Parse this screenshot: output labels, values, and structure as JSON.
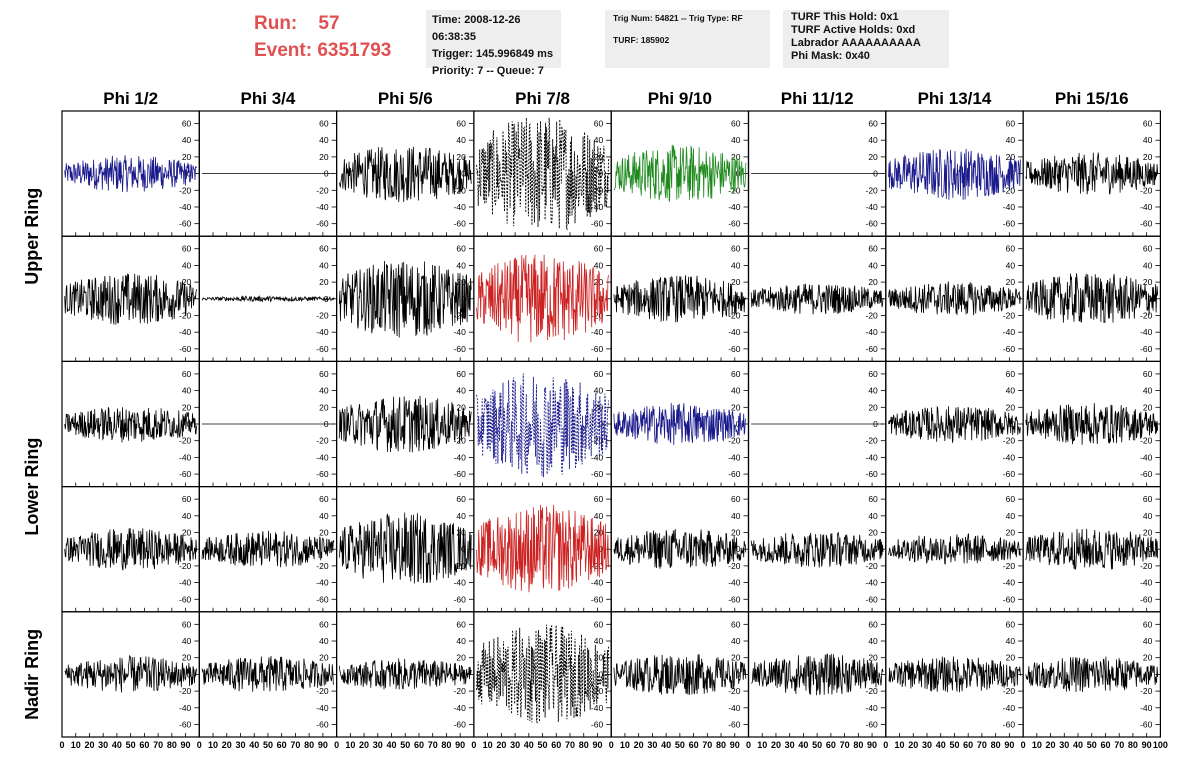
{
  "header": {
    "run_label": "Run:",
    "run_value": "57",
    "event_label": "Event:",
    "event_value": "6351793",
    "time_line": "Time: 2008-12-26 06:38:35",
    "trigger_line": "Trigger: 145.996849 ms",
    "priority_line": "Priority: 7 -- Queue: 7",
    "trig_line": "Trig Num: 54821 -- Trig Type: RF",
    "turf_line": "TURF: 185902",
    "turf_hold": "TURF This Hold: 0x1",
    "turf_active": "TURF Active Holds: 0xd",
    "labrador": "Labrador AAAAAAAAAA",
    "phi_mask": "Phi Mask: 0x40"
  },
  "chart_data": {
    "type": "line",
    "columns": [
      "Phi 1/2",
      "Phi 3/4",
      "Phi 5/6",
      "Phi 7/8",
      "Phi 9/10",
      "Phi 11/12",
      "Phi 13/14",
      "Phi 15/16"
    ],
    "row_labels": [
      "Upper Ring",
      "Lower Ring",
      "Nadir Ring"
    ],
    "xlim": [
      0,
      100
    ],
    "ylim": [
      -75,
      75
    ],
    "x_ticks": [
      0,
      10,
      20,
      30,
      40,
      50,
      60,
      70,
      80,
      90,
      100
    ],
    "y_ticks": [
      -60,
      -40,
      -20,
      0,
      20,
      40,
      60
    ],
    "colors": {
      "black": "#000000",
      "blue": "#1a1a8c",
      "green": "#1e8a1e",
      "red": "#cc2222"
    },
    "panels": [
      [
        {
          "amp": 14,
          "color": "blue",
          "dashed": false,
          "flat": false
        },
        {
          "amp": 0,
          "color": "black",
          "dashed": false,
          "flat": true
        },
        {
          "amp": 22,
          "color": "black",
          "dashed": false,
          "flat": false
        },
        {
          "amp": 45,
          "color": "black",
          "dashed": true,
          "flat": false
        },
        {
          "amp": 22,
          "color": "green",
          "dashed": false,
          "flat": false
        },
        {
          "amp": 0,
          "color": "black",
          "dashed": false,
          "flat": true
        },
        {
          "amp": 20,
          "color": "blue",
          "dashed": false,
          "flat": false
        },
        {
          "amp": 16,
          "color": "black",
          "dashed": false,
          "flat": false
        }
      ],
      [
        {
          "amp": 20,
          "color": "black",
          "dashed": false,
          "flat": false
        },
        {
          "amp": 2,
          "color": "black",
          "dashed": false,
          "flat": false
        },
        {
          "amp": 30,
          "color": "black",
          "dashed": false,
          "flat": false
        },
        {
          "amp": 35,
          "color": "red",
          "dashed": false,
          "flat": false
        },
        {
          "amp": 18,
          "color": "black",
          "dashed": false,
          "flat": false
        },
        {
          "amp": 12,
          "color": "black",
          "dashed": false,
          "flat": false
        },
        {
          "amp": 13,
          "color": "black",
          "dashed": false,
          "flat": false
        },
        {
          "amp": 20,
          "color": "black",
          "dashed": false,
          "flat": false
        }
      ],
      [
        {
          "amp": 14,
          "color": "black",
          "dashed": false,
          "flat": false
        },
        {
          "amp": 0,
          "color": "black",
          "dashed": false,
          "flat": true
        },
        {
          "amp": 22,
          "color": "black",
          "dashed": false,
          "flat": false
        },
        {
          "amp": 40,
          "color": "blue",
          "dashed": true,
          "flat": false
        },
        {
          "amp": 16,
          "color": "blue",
          "dashed": false,
          "flat": false
        },
        {
          "amp": 0,
          "color": "black",
          "dashed": false,
          "flat": true
        },
        {
          "amp": 14,
          "color": "black",
          "dashed": false,
          "flat": false
        },
        {
          "amp": 16,
          "color": "black",
          "dashed": false,
          "flat": false
        }
      ],
      [
        {
          "amp": 16,
          "color": "black",
          "dashed": false,
          "flat": false
        },
        {
          "amp": 14,
          "color": "black",
          "dashed": false,
          "flat": false
        },
        {
          "amp": 28,
          "color": "black",
          "dashed": false,
          "flat": false
        },
        {
          "amp": 34,
          "color": "red",
          "dashed": false,
          "flat": false
        },
        {
          "amp": 16,
          "color": "black",
          "dashed": false,
          "flat": false
        },
        {
          "amp": 14,
          "color": "black",
          "dashed": false,
          "flat": false
        },
        {
          "amp": 12,
          "color": "black",
          "dashed": false,
          "flat": false
        },
        {
          "amp": 16,
          "color": "black",
          "dashed": false,
          "flat": false
        }
      ],
      [
        {
          "amp": 14,
          "color": "black",
          "dashed": false,
          "flat": false
        },
        {
          "amp": 14,
          "color": "black",
          "dashed": false,
          "flat": false
        },
        {
          "amp": 12,
          "color": "black",
          "dashed": false,
          "flat": false
        },
        {
          "amp": 38,
          "color": "black",
          "dashed": true,
          "flat": false
        },
        {
          "amp": 16,
          "color": "black",
          "dashed": false,
          "flat": false
        },
        {
          "amp": 16,
          "color": "black",
          "dashed": false,
          "flat": false
        },
        {
          "amp": 14,
          "color": "black",
          "dashed": false,
          "flat": false
        },
        {
          "amp": 14,
          "color": "black",
          "dashed": false,
          "flat": false
        }
      ]
    ]
  }
}
